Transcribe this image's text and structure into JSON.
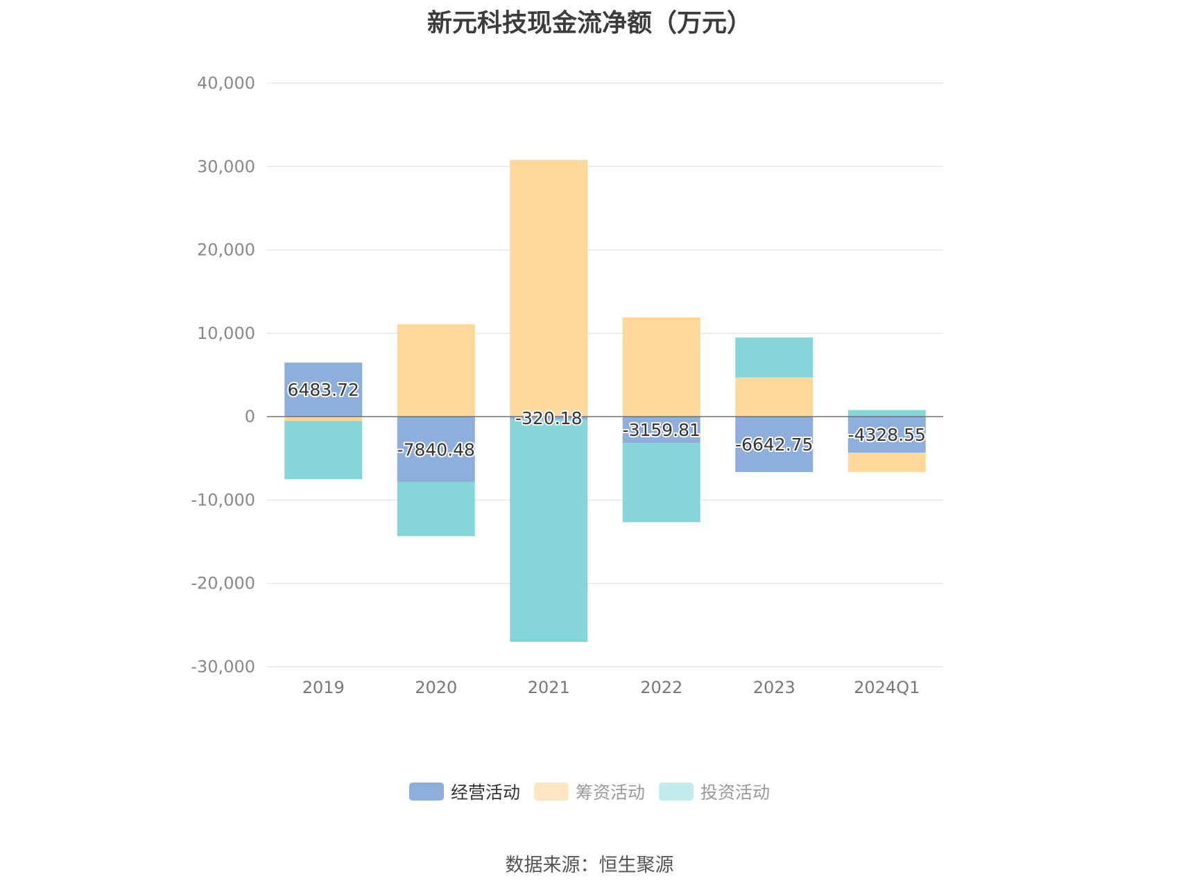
{
  "chart_data": {
    "type": "bar",
    "stacked": true,
    "title": "新元科技现金流净额（万元）",
    "categories": [
      "2019",
      "2020",
      "2021",
      "2022",
      "2023",
      "2024Q1"
    ],
    "series": [
      {
        "name": "经营活动",
        "color": "#8eaedb",
        "values": [
          6483.72,
          -7840.48,
          -320.18,
          -3159.81,
          -6642.75,
          -4328.55
        ]
      },
      {
        "name": "筹资活动",
        "color": "#fed89b",
        "values": [
          -500,
          11100,
          30800,
          11900,
          4700,
          -2300
        ]
      },
      {
        "name": "投资活动",
        "color": "#86d5d8",
        "values": [
          -7000,
          -6500,
          -26700,
          -9500,
          4800,
          800
        ]
      }
    ],
    "data_labels_series": "经营活动",
    "ylim": [
      -30000,
      40000
    ],
    "yticks": [
      40000,
      30000,
      20000,
      10000,
      0,
      -10000,
      -20000,
      -30000
    ],
    "ytick_labels": [
      "40,000",
      "30,000",
      "20,000",
      "10,000",
      "0",
      "-10,000",
      "-20,000",
      "-30,000"
    ],
    "grid": true,
    "legend_position": "bottom-center",
    "legend_colors": [
      "#8eaedb",
      "#fee6c2",
      "#c1ebec"
    ]
  },
  "source_text": "数据来源：恒生聚源"
}
